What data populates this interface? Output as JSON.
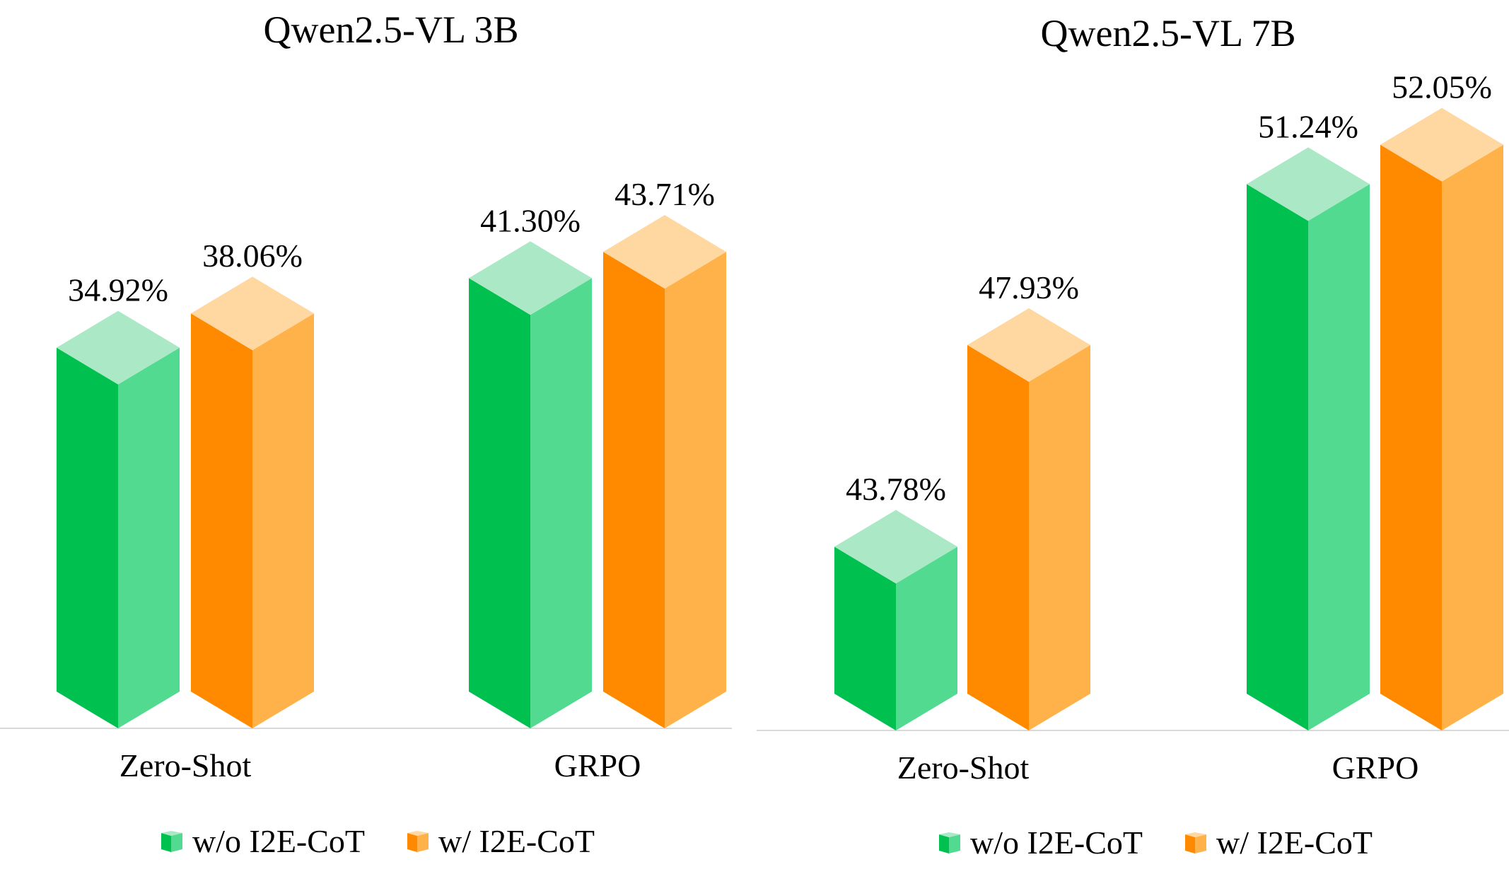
{
  "colors": {
    "series1_front": "#00C04F",
    "series1_side": "#52DA90",
    "series1_top": "#ABE9C6",
    "series2_front": "#FF8A00",
    "series2_side": "#FFB24A",
    "series2_top": "#FFD7A0",
    "baseline": "#D9D9D9"
  },
  "chart_data": [
    {
      "type": "bar",
      "title": "Qwen2.5-VL 3B",
      "categories": [
        "Zero-Shot",
        "GRPO"
      ],
      "series": [
        {
          "name": "w/o I2E-CoT",
          "values": [
            34.92,
            41.3
          ],
          "labels": [
            "34.92%",
            "41.30%"
          ]
        },
        {
          "name": "w/ I2E-CoT",
          "values": [
            38.06,
            43.71
          ],
          "labels": [
            "38.06%",
            "43.71%"
          ]
        }
      ],
      "ylim": [
        0,
        60
      ],
      "xlabel": "",
      "ylabel": "",
      "legend": "bottom",
      "grid": false
    },
    {
      "type": "bar",
      "title": "Qwen2.5-VL 7B",
      "categories": [
        "Zero-Shot",
        "GRPO"
      ],
      "series": [
        {
          "name": "w/o I2E-CoT",
          "values": [
            43.78,
            51.24
          ],
          "labels": [
            "43.78%",
            "51.24%"
          ]
        },
        {
          "name": "w/ I2E-CoT",
          "values": [
            47.93,
            52.05
          ],
          "labels": [
            "47.93%",
            "52.05%"
          ]
        }
      ],
      "ylim": [
        40,
        53.5
      ],
      "xlabel": "",
      "ylabel": "",
      "legend": "bottom",
      "grid": false
    }
  ]
}
